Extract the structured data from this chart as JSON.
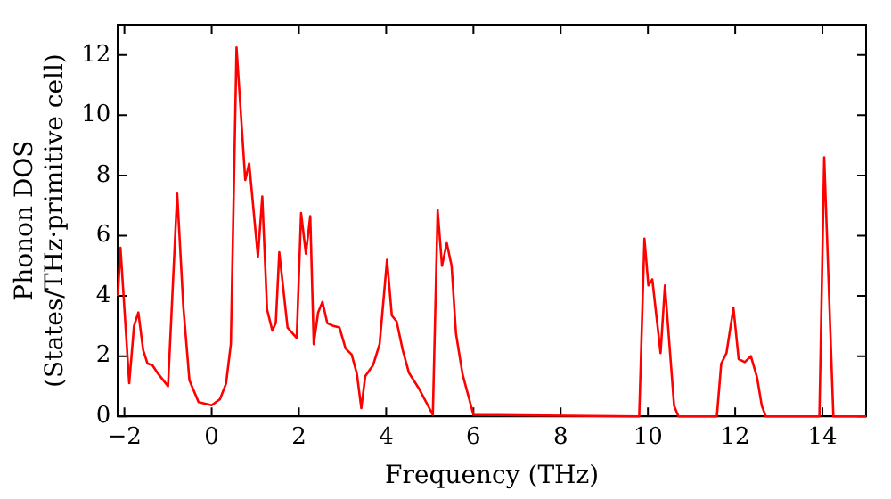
{
  "chart_data": {
    "type": "line",
    "xlabel": "Frequency (THz)",
    "ylabel": "Phonon DOS\n(States/THz·primitive cell)",
    "xlim": [
      -2.15,
      15
    ],
    "ylim": [
      0,
      13
    ],
    "xticks": [
      -2,
      0,
      2,
      4,
      6,
      8,
      10,
      12,
      14
    ],
    "yticks": [
      0,
      2,
      4,
      6,
      8,
      10,
      12
    ],
    "grid": false,
    "legend": false,
    "marker": "none",
    "line_style": "solid",
    "series": [
      {
        "color": "#ff0000",
        "x": [
          -2.15,
          -2.09,
          -1.89,
          -1.78,
          -1.68,
          -1.57,
          -1.47,
          -1.36,
          -1.22,
          -1.0,
          -0.79,
          -0.65,
          -0.51,
          -0.3,
          0,
          0.19,
          0.33,
          0.44,
          0.57,
          0.77,
          0.86,
          1.06,
          1.16,
          1.27,
          1.39,
          1.47,
          1.55,
          1.74,
          1.95,
          2.05,
          2.16,
          2.26,
          2.34,
          2.44,
          2.54,
          2.65,
          2.79,
          2.93,
          3.07,
          3.21,
          3.33,
          3.43,
          3.52,
          3.7,
          3.85,
          4.02,
          4.13,
          4.24,
          4.38,
          4.52,
          4.76,
          5.07,
          5.18,
          5.28,
          5.39,
          5.5,
          5.6,
          5.75,
          6.0,
          9.8,
          9.92,
          10.01,
          10.1,
          10.29,
          10.39,
          10.6,
          10.7,
          11.58,
          11.68,
          11.8,
          11.96,
          12.08,
          12.22,
          12.36,
          12.5,
          12.61,
          12.7,
          13.93,
          14.04,
          14.25,
          15
        ],
        "values": [
          4.0,
          5.6,
          1.1,
          3.0,
          3.45,
          2.2,
          1.75,
          1.7,
          1.4,
          1.0,
          7.4,
          3.65,
          1.2,
          0.47,
          0.37,
          0.57,
          1.09,
          2.4,
          12.25,
          7.85,
          8.4,
          5.3,
          7.3,
          3.55,
          2.85,
          3.1,
          5.45,
          2.95,
          2.6,
          6.75,
          5.4,
          6.65,
          2.4,
          3.45,
          3.8,
          3.1,
          3.0,
          2.95,
          2.25,
          2.05,
          1.4,
          0.27,
          1.33,
          1.7,
          2.4,
          5.2,
          3.35,
          3.15,
          2.2,
          1.45,
          0.9,
          0.05,
          6.85,
          5.0,
          5.75,
          5.0,
          2.75,
          1.4,
          0.05,
          0,
          5.9,
          4.35,
          4.55,
          2.1,
          4.35,
          0.35,
          0,
          0,
          1.75,
          2.1,
          3.6,
          1.9,
          1.8,
          2.0,
          1.3,
          0.35,
          0,
          0,
          8.6,
          0,
          0
        ]
      }
    ]
  }
}
